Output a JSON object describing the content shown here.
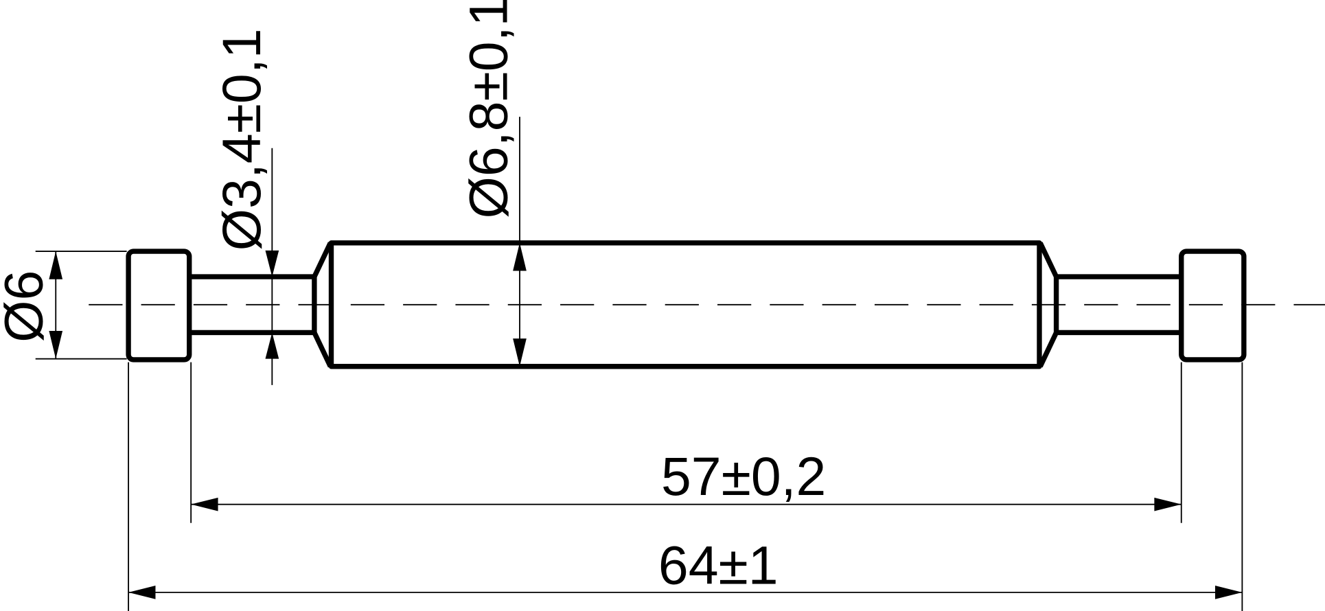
{
  "drawing": {
    "line_color": "#000000",
    "background": "#ffffff",
    "dimensions": {
      "cap_diameter": "Ø6",
      "neck_diameter": "Ø3,4±0,1",
      "body_diameter": "Ø6,8±0,1",
      "inner_length": "57±0,2",
      "overall_length": "64±1"
    }
  }
}
